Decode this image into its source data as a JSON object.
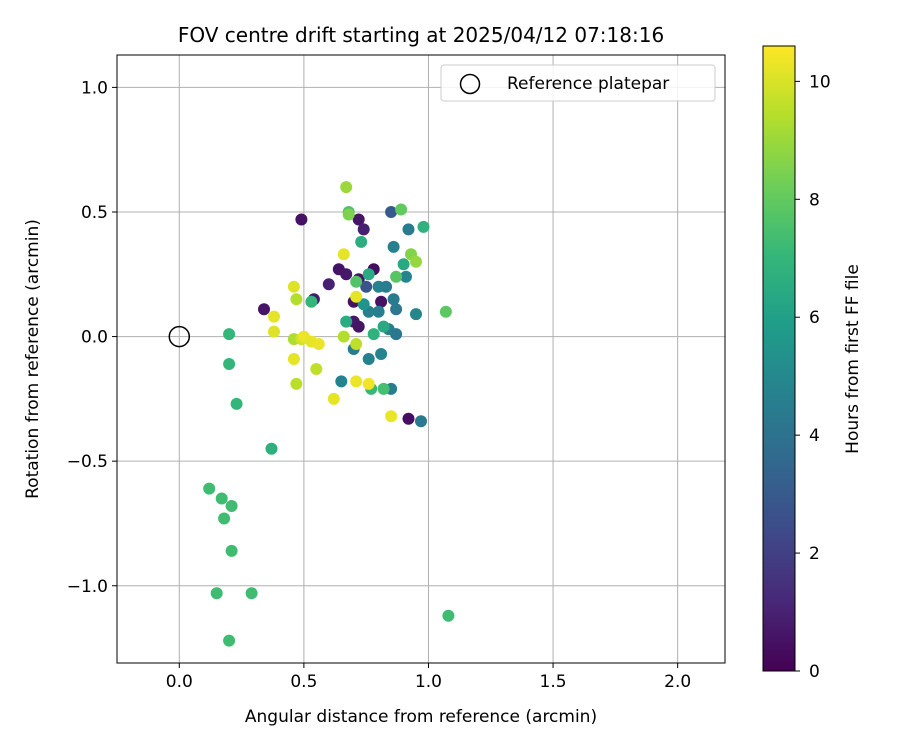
{
  "chart_data": {
    "type": "scatter",
    "title": "FOV centre drift starting at 2025/04/12 07:18:16",
    "xlabel": "Angular distance from reference (arcmin)",
    "ylabel": "Rotation from reference (arcmin)",
    "xlim": [
      -0.25,
      2.19
    ],
    "ylim": [
      -1.31,
      1.13
    ],
    "xticks": [
      0.0,
      0.5,
      1.0,
      1.5,
      2.0
    ],
    "xtick_labels": [
      "0.0",
      "0.5",
      "1.0",
      "1.5",
      "2.0"
    ],
    "yticks": [
      -1.0,
      -0.5,
      0.0,
      0.5,
      1.0
    ],
    "ytick_labels": [
      "−1.0",
      "−0.5",
      "0.0",
      "0.5",
      "1.0"
    ],
    "grid": true,
    "legend": {
      "placement": "top-right",
      "entries": [
        "Reference platepar"
      ]
    },
    "reference_point": {
      "x": 0.0,
      "y": 0.0
    },
    "colorbar": {
      "label": "Hours from first FF file",
      "range": [
        0,
        10.6
      ],
      "ticks": [
        0,
        2,
        4,
        6,
        8,
        10
      ],
      "tick_labels": [
        "0",
        "2",
        "4",
        "6",
        "8",
        "10"
      ],
      "colormap": "viridis"
    },
    "colormap_stops": [
      "#440154",
      "#482878",
      "#3e4a89",
      "#31688e",
      "#26828e",
      "#1f9e89",
      "#35b779",
      "#6ece58",
      "#b5de2b",
      "#fde725"
    ],
    "points": [
      [
        0.49,
        0.47,
        0.5
      ],
      [
        0.72,
        0.47,
        0.6
      ],
      [
        0.74,
        0.43,
        0.9
      ],
      [
        0.34,
        0.11,
        0.6
      ],
      [
        0.54,
        0.15,
        0.8
      ],
      [
        0.6,
        0.21,
        1.0
      ],
      [
        0.64,
        0.27,
        0.5
      ],
      [
        0.67,
        0.25,
        0.7
      ],
      [
        0.7,
        0.14,
        0.5
      ],
      [
        0.72,
        0.23,
        0.6
      ],
      [
        0.78,
        0.27,
        0.4
      ],
      [
        0.81,
        0.14,
        0.5
      ],
      [
        0.7,
        0.06,
        0.7
      ],
      [
        0.72,
        0.04,
        0.6
      ],
      [
        0.92,
        -0.33,
        0.4
      ],
      [
        0.75,
        0.2,
        2.8
      ],
      [
        0.85,
        0.5,
        3.0
      ],
      [
        0.92,
        0.43,
        4.4
      ],
      [
        0.86,
        0.36,
        4.6
      ],
      [
        0.91,
        0.24,
        4.8
      ],
      [
        0.8,
        0.2,
        4.7
      ],
      [
        0.83,
        0.2,
        4.5
      ],
      [
        0.86,
        0.15,
        4.4
      ],
      [
        0.87,
        0.11,
        4.3
      ],
      [
        0.8,
        0.1,
        4.5
      ],
      [
        0.76,
        0.1,
        4.6
      ],
      [
        0.84,
        0.03,
        4.5
      ],
      [
        0.87,
        0.01,
        4.2
      ],
      [
        0.7,
        -0.05,
        4.4
      ],
      [
        0.76,
        -0.09,
        4.6
      ],
      [
        0.81,
        -0.07,
        4.8
      ],
      [
        0.65,
        -0.18,
        4.7
      ],
      [
        0.85,
        -0.21,
        4.5
      ],
      [
        0.97,
        -0.34,
        4.3
      ],
      [
        0.95,
        0.09,
        4.9
      ],
      [
        0.74,
        0.13,
        5.5
      ],
      [
        0.73,
        0.38,
        6.6
      ],
      [
        0.98,
        0.44,
        6.8
      ],
      [
        0.76,
        0.25,
        6.5
      ],
      [
        0.9,
        0.29,
        6.4
      ],
      [
        0.67,
        0.06,
        6.5
      ],
      [
        0.78,
        0.01,
        6.8
      ],
      [
        0.82,
        0.04,
        6.4
      ],
      [
        0.37,
        -0.45,
        6.7
      ],
      [
        0.53,
        0.14,
        7.0
      ],
      [
        0.2,
        0.01,
        7.0
      ],
      [
        0.2,
        -0.11,
        7.0
      ],
      [
        0.23,
        -0.27,
        7.0
      ],
      [
        0.77,
        -0.21,
        7.1
      ],
      [
        0.82,
        -0.21,
        7.4
      ],
      [
        0.68,
        0.5,
        7.6
      ],
      [
        0.89,
        0.51,
        8.0
      ],
      [
        0.87,
        0.24,
        7.8
      ],
      [
        0.71,
        0.22,
        7.7
      ],
      [
        1.07,
        0.1,
        7.9
      ],
      [
        0.12,
        -0.61,
        7.3
      ],
      [
        0.17,
        -0.65,
        7.3
      ],
      [
        0.18,
        -0.73,
        7.3
      ],
      [
        0.21,
        -0.68,
        7.3
      ],
      [
        0.21,
        -0.86,
        7.3
      ],
      [
        0.15,
        -1.03,
        7.3
      ],
      [
        0.29,
        -1.03,
        7.3
      ],
      [
        0.2,
        -1.22,
        7.3
      ],
      [
        1.08,
        -1.12,
        7.3
      ],
      [
        0.68,
        0.49,
        8.5
      ],
      [
        0.67,
        0.6,
        9.0
      ],
      [
        0.93,
        0.33,
        8.6
      ],
      [
        0.95,
        0.3,
        8.9
      ],
      [
        0.47,
        0.15,
        9.4
      ],
      [
        0.46,
        -0.01,
        9.3
      ],
      [
        0.47,
        -0.19,
        9.5
      ],
      [
        0.55,
        -0.13,
        9.6
      ],
      [
        0.66,
        0.0,
        9.4
      ],
      [
        0.71,
        -0.03,
        9.6
      ],
      [
        0.49,
        -0.01,
        9.9
      ],
      [
        0.66,
        0.33,
        10.2
      ],
      [
        0.46,
        0.2,
        10.1
      ],
      [
        0.38,
        0.08,
        10.2
      ],
      [
        0.38,
        0.02,
        10.1
      ],
      [
        0.5,
        0.0,
        10.3
      ],
      [
        0.53,
        -0.02,
        10.2
      ],
      [
        0.56,
        -0.03,
        10.3
      ],
      [
        0.46,
        -0.09,
        10.2
      ],
      [
        0.71,
        0.16,
        10.2
      ],
      [
        0.71,
        -0.18,
        10.3
      ],
      [
        0.76,
        -0.19,
        10.4
      ],
      [
        0.62,
        -0.25,
        10.2
      ],
      [
        0.85,
        -0.32,
        10.3
      ]
    ]
  }
}
